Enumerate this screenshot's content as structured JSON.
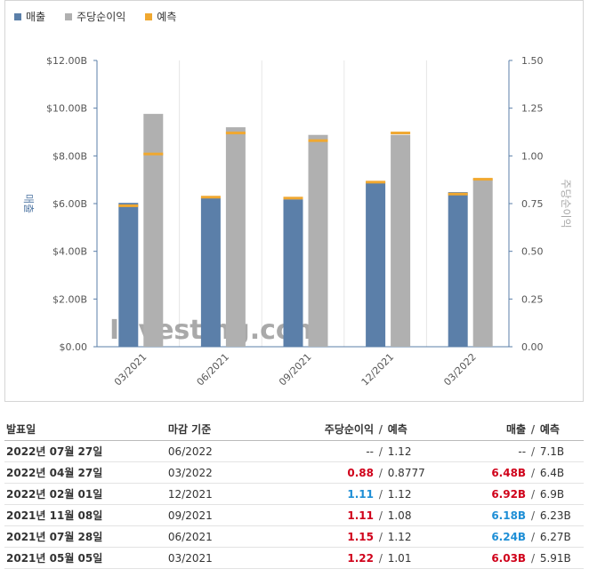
{
  "legend": [
    {
      "label": "매출",
      "color": "#5b7fa9"
    },
    {
      "label": "주당순이익",
      "color": "#b0b0b0"
    },
    {
      "label": "예측",
      "color": "#f0a830"
    }
  ],
  "watermark": "Investing.com",
  "chart_data": {
    "type": "bar",
    "categories": [
      "03/2021",
      "06/2021",
      "09/2021",
      "12/2021",
      "03/2022"
    ],
    "series": [
      {
        "name": "매출",
        "axis": "left",
        "color": "#5b7fa9",
        "values": [
          6.03,
          6.24,
          6.18,
          6.92,
          6.48
        ],
        "forecast": [
          5.91,
          6.27,
          6.23,
          6.9,
          6.4
        ]
      },
      {
        "name": "주당순이익",
        "axis": "right",
        "color": "#b0b0b0",
        "values": [
          1.22,
          1.15,
          1.11,
          1.11,
          0.88
        ],
        "forecast": [
          1.01,
          1.12,
          1.08,
          1.12,
          0.8777
        ]
      }
    ],
    "y_left": {
      "label": "매출",
      "ylim": [
        0,
        12
      ],
      "ticks": [
        "$0.00",
        "$2.00B",
        "$4.00B",
        "$6.00B",
        "$8.00B",
        "$10.00B",
        "$12.00B"
      ]
    },
    "y_right": {
      "label": "주당순이익",
      "ylim": [
        0,
        1.5
      ],
      "ticks": [
        "0.00",
        "0.25",
        "0.50",
        "0.75",
        "1.00",
        "1.25",
        "1.50"
      ]
    },
    "forecast_color": "#f0a830",
    "grid": "vertical"
  },
  "table": {
    "headers": {
      "date": "발표일",
      "close": "마감 기준",
      "eps": "주당순이익",
      "eps_forecast": "예측",
      "revenue": "매출",
      "revenue_forecast": "예측",
      "slash": "/"
    },
    "rows": [
      {
        "date": "2022년 07월 27일",
        "close": "06/2022",
        "eps": "--",
        "eps_color": "neutral",
        "eps_forecast": "1.12",
        "revenue": "--",
        "revenue_color": "neutral",
        "revenue_forecast": "7.1B"
      },
      {
        "date": "2022년 04월 27일",
        "close": "03/2022",
        "eps": "0.88",
        "eps_color": "red",
        "eps_forecast": "0.8777",
        "revenue": "6.48B",
        "revenue_color": "red",
        "revenue_forecast": "6.4B"
      },
      {
        "date": "2022년 02월 01일",
        "close": "12/2021",
        "eps": "1.11",
        "eps_color": "blue",
        "eps_forecast": "1.12",
        "revenue": "6.92B",
        "revenue_color": "red",
        "revenue_forecast": "6.9B"
      },
      {
        "date": "2021년 11월 08일",
        "close": "09/2021",
        "eps": "1.11",
        "eps_color": "red",
        "eps_forecast": "1.08",
        "revenue": "6.18B",
        "revenue_color": "blue",
        "revenue_forecast": "6.23B"
      },
      {
        "date": "2021년 07월 28일",
        "close": "06/2021",
        "eps": "1.15",
        "eps_color": "red",
        "eps_forecast": "1.12",
        "revenue": "6.24B",
        "revenue_color": "blue",
        "revenue_forecast": "6.27B"
      },
      {
        "date": "2021년 05월 05일",
        "close": "03/2021",
        "eps": "1.22",
        "eps_color": "red",
        "eps_forecast": "1.01",
        "revenue": "6.03B",
        "revenue_color": "red",
        "revenue_forecast": "5.91B"
      }
    ]
  }
}
